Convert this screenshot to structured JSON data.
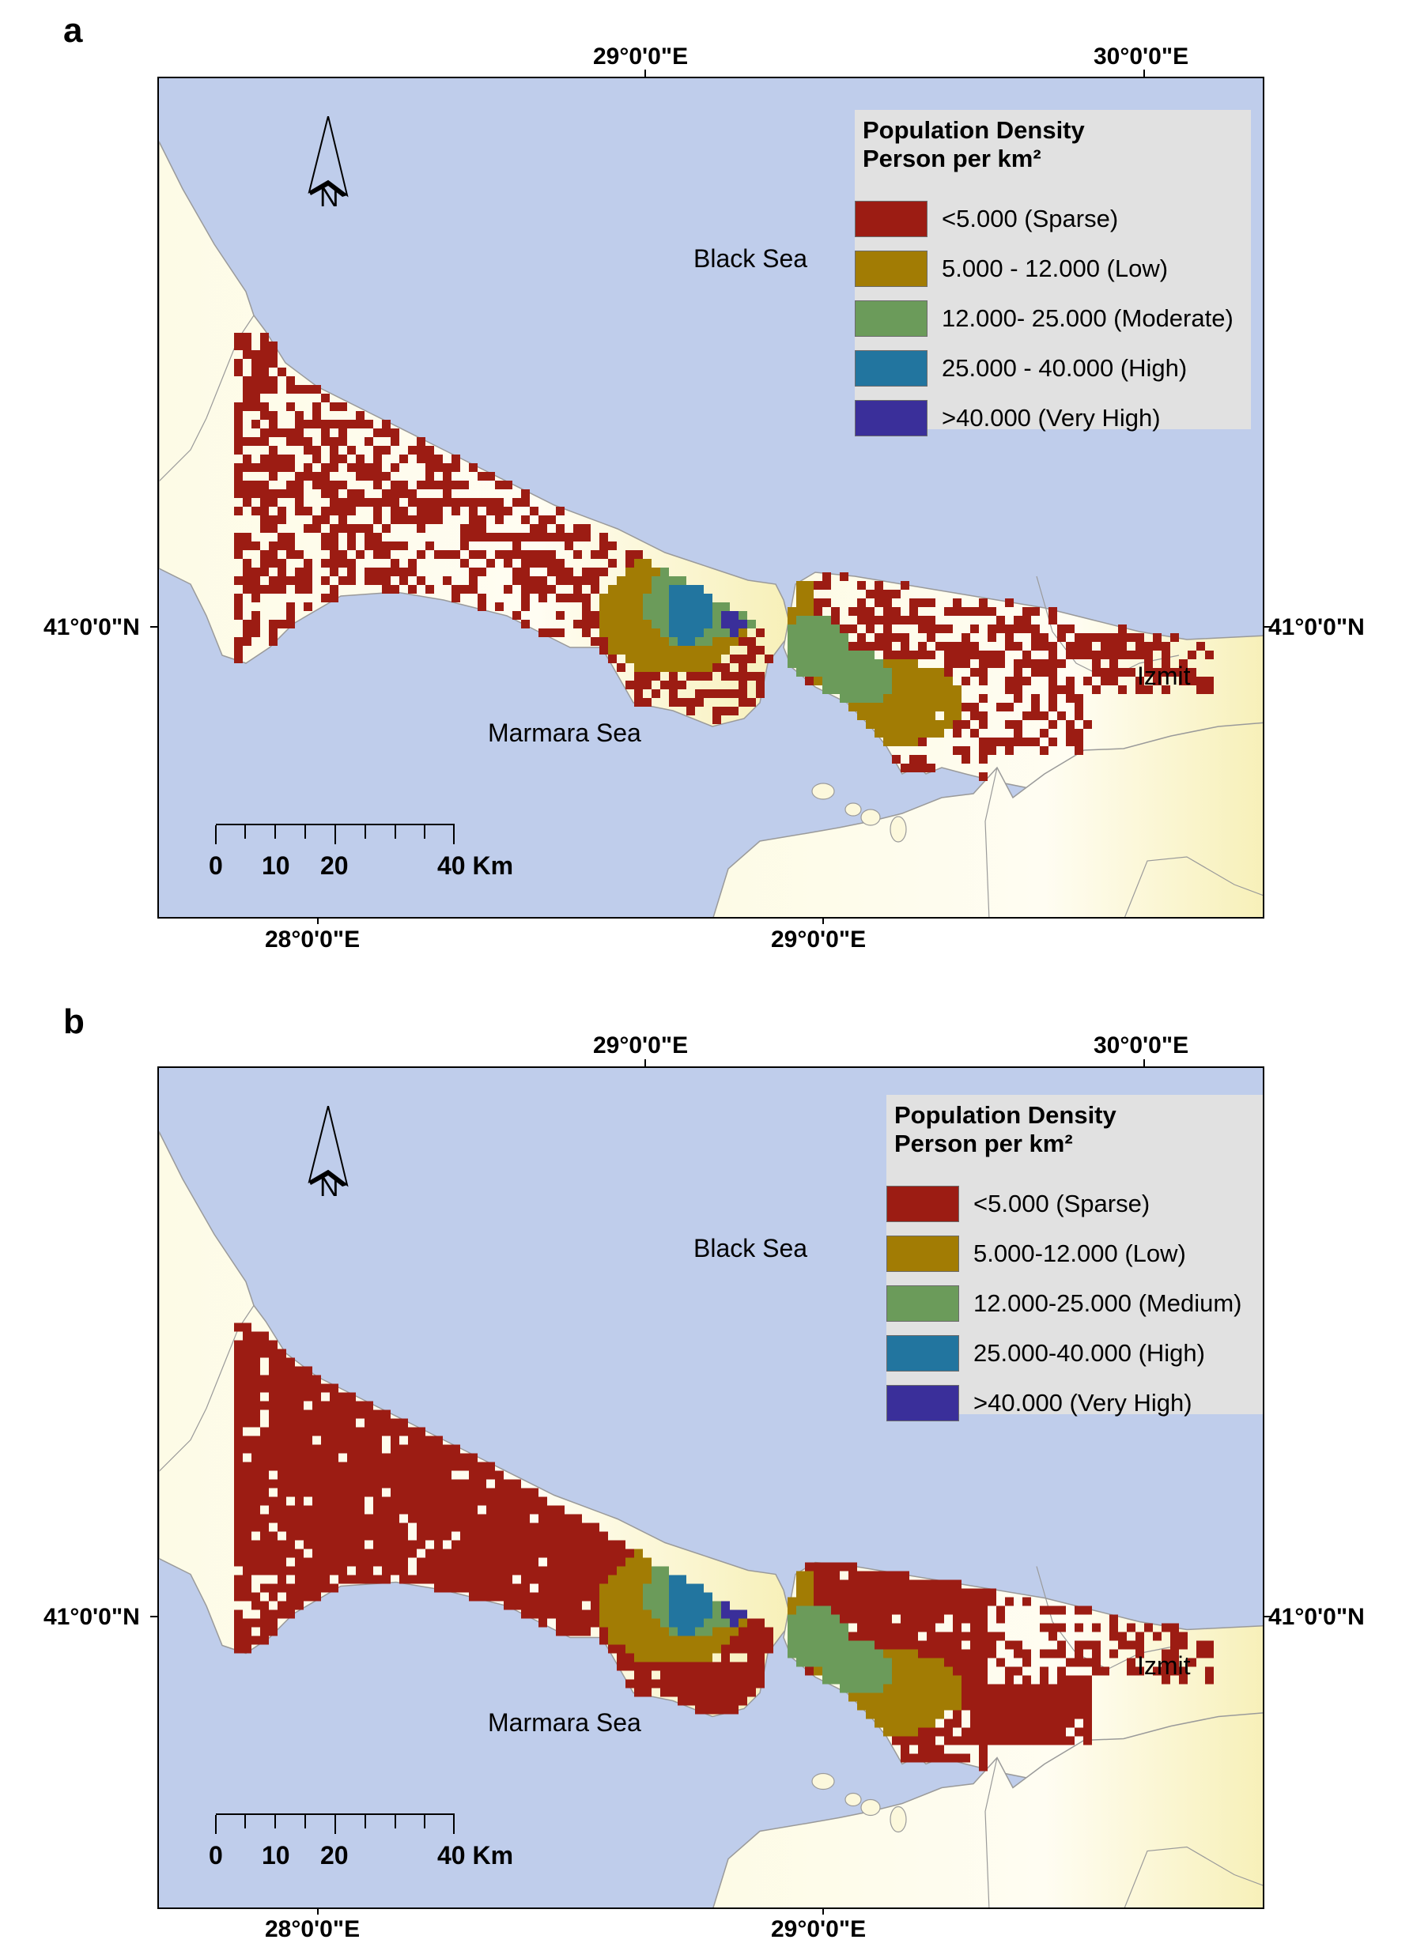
{
  "panels": [
    {
      "letter": "a",
      "top_ticks": [
        {
          "label": "29°0'0\"E"
        },
        {
          "label": "30°0'0\"E"
        }
      ],
      "bottom_ticks": [
        {
          "label": "28°0'0\"E"
        },
        {
          "label": "29°0'0\"E"
        }
      ],
      "left_tick": "41°0'0\"N",
      "right_tick": "41°0'0\"N",
      "legend": {
        "title_line1": "Population Density",
        "title_line2": "Person per km²",
        "items": [
          {
            "label": "<5.000 (Sparse)",
            "color": "#9c1c13"
          },
          {
            "label": "5.000 - 12.000 (Low)",
            "color": "#a27c04"
          },
          {
            "label": "12.000- 25.000 (Moderate)",
            "color": "#6b9b5a"
          },
          {
            "label": "25.000 - 40.000 (High)",
            "color": "#22759f"
          },
          {
            "label": ">40.000 (Very High)",
            "color": "#3a2f9a"
          }
        ]
      },
      "labels": {
        "black_sea": "Black Sea",
        "marmara_sea": "Marmara Sea",
        "izmit": "Izmit",
        "north": "N"
      },
      "scale_bar": {
        "labels": [
          "0",
          "10",
          "20",
          "40 Km"
        ]
      }
    },
    {
      "letter": "b",
      "top_ticks": [
        {
          "label": "29°0'0\"E"
        },
        {
          "label": "30°0'0\"E"
        }
      ],
      "bottom_ticks": [
        {
          "label": "28°0'0\"E"
        },
        {
          "label": "29°0'0\"E"
        }
      ],
      "left_tick": "41°0'0\"N",
      "right_tick": "41°0'0\"N",
      "legend": {
        "title_line1": "Population Density",
        "title_line2": "Person per km²",
        "items": [
          {
            "label": "<5.000 (Sparse)",
            "color": "#9c1c13"
          },
          {
            "label": "5.000-12.000 (Low)",
            "color": "#a27c04"
          },
          {
            "label": "12.000-25.000 (Medium)",
            "color": "#6b9b5a"
          },
          {
            "label": "25.000-40.000 (High)",
            "color": "#22759f"
          },
          {
            "label": ">40.000 (Very High)",
            "color": "#3a2f9a"
          }
        ]
      },
      "labels": {
        "black_sea": "Black Sea",
        "marmara_sea": "Marmara Sea",
        "izmit": "Izmit",
        "north": "N"
      },
      "scale_bar": {
        "labels": [
          "0",
          "10",
          "20",
          "40 Km"
        ]
      }
    }
  ],
  "colors": {
    "sea": "#bfcdeb",
    "land": "#fcf8dc",
    "land_bright": "#faf4c2",
    "boundary": "#9a9a9a"
  }
}
